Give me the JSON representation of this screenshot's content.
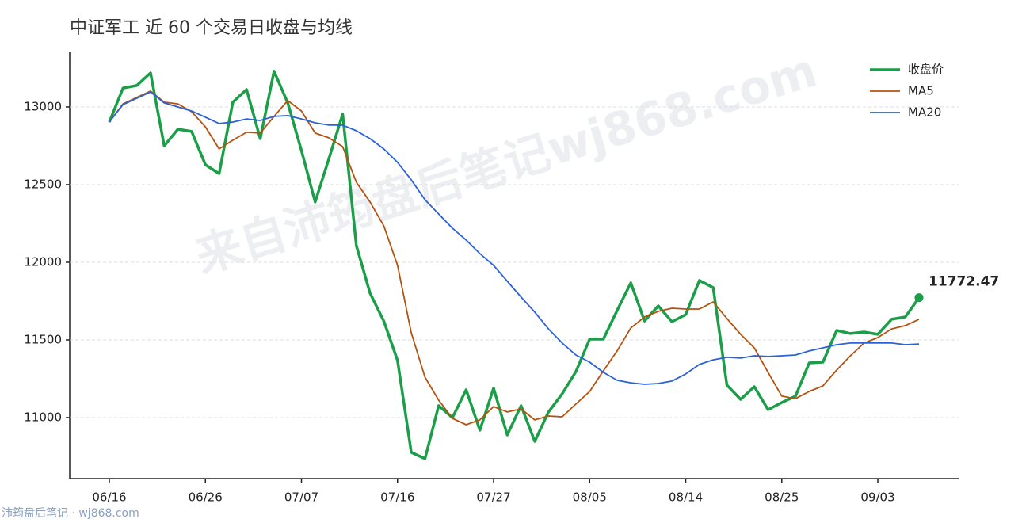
{
  "chart_data": {
    "type": "line",
    "title": "中证军工 近 60 个交易日收盘与均线",
    "watermark": "来自沛筠盘后笔记wj868.com",
    "footer": "沛筠盘后笔记 · wj868.com",
    "categories": [
      "06/16",
      null,
      null,
      null,
      null,
      null,
      null,
      "06/26",
      null,
      null,
      null,
      null,
      null,
      null,
      "07/07",
      null,
      null,
      null,
      null,
      null,
      null,
      "07/16",
      null,
      null,
      null,
      null,
      null,
      null,
      "07/27",
      null,
      null,
      null,
      null,
      null,
      null,
      "08/05",
      null,
      null,
      null,
      null,
      null,
      null,
      "08/14",
      null,
      null,
      null,
      null,
      null,
      null,
      "08/25",
      null,
      null,
      null,
      null,
      null,
      null,
      "09/03",
      null,
      null,
      null
    ],
    "ylim": [
      10607,
      13357
    ],
    "yticks": [
      11000,
      11500,
      12000,
      12500,
      13000
    ],
    "grid": true,
    "legend": "upper right",
    "series": [
      {
        "name": "收盘价",
        "color": "#1a9e48",
        "values": [
          12903,
          13122,
          13138,
          13219,
          12750,
          12857,
          12842,
          12628,
          12571,
          13031,
          13112,
          12796,
          13230,
          13026,
          12719,
          12388,
          12668,
          12954,
          12107,
          11801,
          11622,
          11367,
          10776,
          10735,
          11077,
          11000,
          11179,
          10918,
          11189,
          10888,
          11077,
          10847,
          11036,
          11153,
          11296,
          11505,
          11505,
          11689,
          11867,
          11622,
          11719,
          11617,
          11663,
          11883,
          11837,
          11209,
          11117,
          11199,
          11051,
          11097,
          11138,
          11352,
          11357,
          11561,
          11541,
          11551,
          11536,
          11633,
          11648,
          11772.47
        ]
      },
      {
        "name": "MA5",
        "color": "#b5520f",
        "values": [
          12903,
          13020,
          13061,
          13102,
          13031,
          13020,
          12969,
          12872,
          12730,
          12786,
          12837,
          12832,
          12939,
          13041,
          12974,
          12832,
          12801,
          12745,
          12515,
          12388,
          12235,
          11980,
          11546,
          11260,
          11112,
          10995,
          10954,
          10985,
          11071,
          11036,
          11056,
          10985,
          11010,
          11005,
          11087,
          11168,
          11301,
          11429,
          11577,
          11648,
          11684,
          11704,
          11699,
          11699,
          11745,
          11638,
          11536,
          11449,
          11291,
          11138,
          11122,
          11168,
          11204,
          11306,
          11398,
          11480,
          11515,
          11571,
          11592,
          11633
        ]
      },
      {
        "name": "MA20",
        "color": "#2a62d8",
        "values": [
          12903,
          13015,
          13056,
          13097,
          13026,
          13000,
          12974,
          12934,
          12893,
          12903,
          12923,
          12913,
          12939,
          12944,
          12923,
          12898,
          12883,
          12883,
          12847,
          12796,
          12730,
          12643,
          12531,
          12403,
          12311,
          12219,
          12143,
          12056,
          11980,
          11878,
          11776,
          11679,
          11571,
          11480,
          11403,
          11357,
          11291,
          11240,
          11224,
          11214,
          11219,
          11235,
          11281,
          11342,
          11372,
          11388,
          11383,
          11398,
          11393,
          11398,
          11403,
          11429,
          11449,
          11469,
          11480,
          11480,
          11480,
          11480,
          11469,
          11474
        ]
      }
    ]
  }
}
